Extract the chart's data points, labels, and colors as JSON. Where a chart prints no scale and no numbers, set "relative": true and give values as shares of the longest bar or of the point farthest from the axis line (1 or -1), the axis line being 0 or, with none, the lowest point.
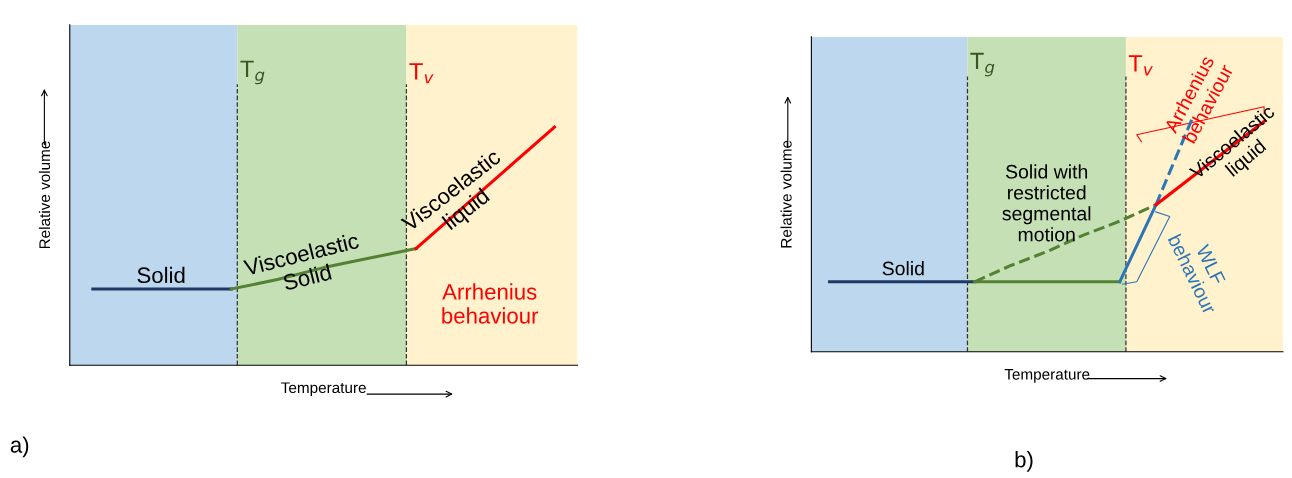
{
  "chart_data": [
    {
      "type": "line",
      "relative": true,
      "xlabel": "Temperature",
      "ylabel": "Relative volume",
      "categories": [
        null,
        null,
        null,
        null,
        null,
        null,
        null,
        null,
        null,
        null,
        null
      ],
      "series": [
        {
          "color": "#1f3864",
          "values": [
            0.32,
            0.32,
            0.32,
            0.32,
            null,
            null,
            null,
            null,
            null,
            null,
            null
          ]
        },
        {
          "color": "#548235",
          "values": [
            null,
            null,
            null,
            0.32,
            0.36,
            0.41,
            0.45,
            0.49,
            null,
            null,
            null
          ]
        },
        {
          "color": "#ff0000",
          "values": [
            null,
            null,
            null,
            null,
            null,
            null,
            null,
            0.49,
            0.66,
            0.83,
            1
          ]
        }
      ],
      "annotations": [
        "T$_{g}$",
        "T$_{v}$",
        "Solid",
        "Viscoelastic\nSolid",
        "Viscoelastic\nliquid",
        "Arrhenius\nbehaviour",
        "a)"
      ]
    },
    {
      "type": "line",
      "relative": true,
      "xlabel": "Temperature",
      "ylabel": "Relative volume",
      "categories": [
        null,
        null,
        null,
        null,
        null,
        null,
        null,
        null,
        null,
        null,
        null,
        null,
        null
      ],
      "series": [
        {
          "color": "#1f3864",
          "values": [
            0.3,
            0.3,
            0.3,
            0.3,
            0.3,
            null,
            null,
            null,
            null,
            null,
            null,
            null,
            null
          ]
        },
        {
          "color": "#548235",
          "values": [
            null,
            null,
            null,
            null,
            0.3,
            0.3,
            0.3,
            0.3,
            0.3,
            null,
            null,
            null,
            null
          ]
        },
        {
          "color": "#548235",
          "values": [
            null,
            null,
            null,
            null,
            0.3,
            0.37,
            0.43,
            0.5,
            0.56,
            0.63,
            null,
            null,
            null
          ],
          "line_style": "dashed"
        },
        {
          "color": "#2e75b6",
          "values": [
            null,
            null,
            null,
            null,
            null,
            null,
            null,
            null,
            0.3,
            0.63,
            null,
            null,
            null
          ]
        },
        {
          "color": "#2e75b6",
          "values": [
            null,
            null,
            null,
            null,
            null,
            null,
            null,
            null,
            null,
            0.63,
            1,
            null,
            null
          ],
          "line_style": "dashed"
        },
        {
          "color": "#ff0000",
          "values": [
            null,
            null,
            null,
            null,
            null,
            null,
            null,
            null,
            null,
            0.63,
            0.75,
            0.87,
            0.99
          ]
        }
      ],
      "annotations": [
        "T$_{g}$",
        "T$_{v}$",
        "Solid",
        "Solid with\nrestricted\nsegmental\nmotion",
        "Arrhenius\nbehaviour",
        "Viscoelastic\nliquid",
        "WLF\nbehaviour",
        "b)"
      ]
    }
  ]
}
